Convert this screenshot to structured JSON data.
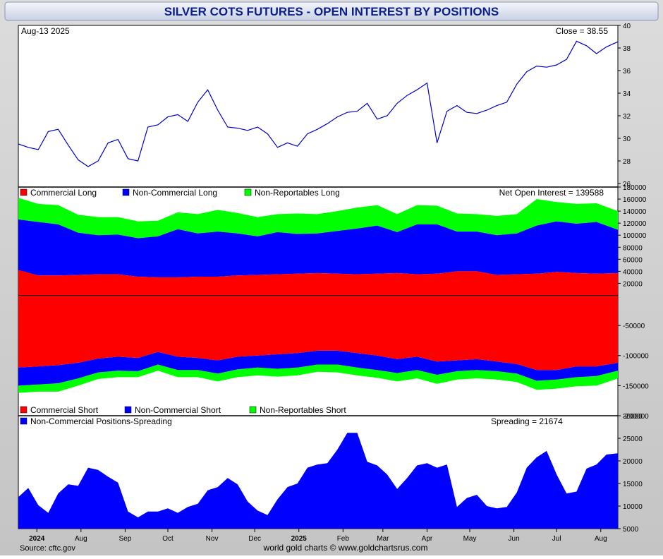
{
  "title": "SILVER COTS FUTURES - OPEN INTEREST BY POSITIONS",
  "source": "Source: cftc.gov",
  "credit": "world gold charts © www.goldchartsrus.com",
  "colors": {
    "commercial": "#ff0000",
    "noncommercial": "#0000ff",
    "nonreportable": "#00ff00",
    "price": "#0000cc",
    "title": "#0b1e8c"
  },
  "x_axis_labels": [
    "2024",
    "Aug",
    "Sep",
    "Oct",
    "Nov",
    "Dec",
    "2025",
    "Feb",
    "Mar",
    "Apr",
    "May",
    "Jun",
    "Jul",
    "Aug"
  ],
  "chart_data": [
    {
      "type": "line",
      "date_label": "Aug-13  2025",
      "close_label": "Close = 38.55",
      "ylim": [
        26,
        40
      ],
      "yticks": [
        26,
        28,
        30,
        32,
        34,
        36,
        38,
        40
      ],
      "x": [
        "2024-06-18",
        "2024-06-25",
        "2024-07-02",
        "2024-07-09",
        "2024-07-16",
        "2024-07-23",
        "2024-07-30",
        "2024-08-06",
        "2024-08-13",
        "2024-08-20",
        "2024-08-27",
        "2024-09-03",
        "2024-09-10",
        "2024-09-17",
        "2024-09-24",
        "2024-10-01",
        "2024-10-08",
        "2024-10-15",
        "2024-10-22",
        "2024-10-29",
        "2024-11-05",
        "2024-11-12",
        "2024-11-19",
        "2024-11-26",
        "2024-12-03",
        "2024-12-10",
        "2024-12-17",
        "2024-12-24",
        "2024-12-31",
        "2025-01-07",
        "2025-01-14",
        "2025-01-21",
        "2025-01-28",
        "2025-02-04",
        "2025-02-11",
        "2025-02-18",
        "2025-02-25",
        "2025-03-04",
        "2025-03-11",
        "2025-03-18",
        "2025-03-25",
        "2025-04-01",
        "2025-04-08",
        "2025-04-15",
        "2025-04-22",
        "2025-04-29",
        "2025-05-06",
        "2025-05-13",
        "2025-05-20",
        "2025-05-27",
        "2025-06-03",
        "2025-06-10",
        "2025-06-17",
        "2025-06-24",
        "2025-07-01",
        "2025-07-08",
        "2025-07-15",
        "2025-07-22",
        "2025-07-29",
        "2025-08-05",
        "2025-08-13"
      ],
      "values": [
        29.5,
        29.2,
        29.0,
        30.6,
        30.8,
        29.4,
        28.1,
        27.5,
        28.0,
        29.6,
        29.9,
        28.2,
        28.0,
        31.0,
        31.2,
        31.9,
        32.1,
        31.5,
        33.2,
        34.3,
        32.5,
        31.0,
        30.9,
        30.7,
        31.0,
        30.4,
        29.2,
        29.6,
        29.3,
        30.4,
        30.8,
        31.3,
        31.9,
        32.3,
        32.4,
        33.1,
        31.7,
        32.0,
        33.1,
        33.8,
        34.3,
        34.9,
        29.6,
        32.4,
        32.9,
        32.3,
        32.2,
        32.5,
        32.9,
        33.2,
        34.8,
        35.9,
        36.4,
        36.3,
        36.5,
        37.0,
        38.6,
        38.2,
        37.5,
        38.1,
        38.55
      ]
    },
    {
      "type": "area",
      "net_label": "Net Open Interest = 139588",
      "legend_long": [
        "Commercial Long",
        "Non-Commercial Long",
        "Non-Reportables Long"
      ],
      "legend_short": [
        "Commercial Short",
        "Non-Commercial Short",
        "Non-Reportables Short"
      ],
      "ylim": [
        -200000,
        180000
      ],
      "yticks": [
        -200000,
        -150000,
        -100000,
        -50000,
        20000,
        40000,
        60000,
        80000,
        100000,
        120000,
        140000,
        160000,
        180000
      ],
      "x": [
        "2024-06-18",
        "2024-07-02",
        "2024-07-16",
        "2024-07-30",
        "2024-08-13",
        "2024-08-27",
        "2024-09-10",
        "2024-09-24",
        "2024-10-08",
        "2024-10-22",
        "2024-11-05",
        "2024-11-19",
        "2024-12-03",
        "2024-12-17",
        "2024-12-31",
        "2025-01-14",
        "2025-01-28",
        "2025-02-11",
        "2025-02-25",
        "2025-03-11",
        "2025-03-25",
        "2025-04-08",
        "2025-04-22",
        "2025-05-06",
        "2025-05-20",
        "2025-06-03",
        "2025-06-17",
        "2025-07-01",
        "2025-07-15",
        "2025-07-29",
        "2025-08-13"
      ],
      "series": [
        {
          "name": "Commercial Long",
          "values": [
            42000,
            33000,
            33000,
            34000,
            35000,
            35000,
            31000,
            30000,
            30000,
            31000,
            31000,
            33000,
            34000,
            35000,
            36000,
            37000,
            36000,
            35000,
            36000,
            37000,
            35000,
            36000,
            40000,
            40000,
            34000,
            35000,
            36000,
            39000,
            37000,
            36000,
            37000
          ]
        },
        {
          "name": "Non-Commercial Long",
          "values": [
            84000,
            89000,
            85000,
            70000,
            65000,
            66000,
            64000,
            68000,
            80000,
            72000,
            75000,
            70000,
            64000,
            70000,
            66000,
            66000,
            71000,
            76000,
            80000,
            68000,
            83000,
            82000,
            66000,
            66000,
            66000,
            68000,
            80000,
            84000,
            82000,
            86000,
            72000
          ]
        },
        {
          "name": "Non-Reportables Long",
          "values": [
            36000,
            30000,
            32000,
            30000,
            30000,
            29000,
            28000,
            26000,
            28000,
            32000,
            36000,
            34000,
            32000,
            30000,
            34000,
            32000,
            33000,
            35000,
            34000,
            30000,
            32000,
            31000,
            30000,
            29000,
            32000,
            32000,
            44000,
            32000,
            33000,
            31000,
            31000
          ]
        },
        {
          "name": "Commercial Short",
          "values": [
            -120000,
            -118000,
            -116000,
            -112000,
            -105000,
            -102000,
            -104000,
            -94000,
            -102000,
            -104000,
            -108000,
            -102000,
            -100000,
            -98000,
            -96000,
            -92000,
            -92000,
            -96000,
            -100000,
            -106000,
            -102000,
            -110000,
            -108000,
            -106000,
            -110000,
            -114000,
            -124000,
            -124000,
            -118000,
            -118000,
            -112000
          ]
        },
        {
          "name": "Non-Commercial Short",
          "values": [
            -30000,
            -30000,
            -30000,
            -26000,
            -23000,
            -23000,
            -22000,
            -21000,
            -22000,
            -20000,
            -22000,
            -21000,
            -20000,
            -24000,
            -24000,
            -23000,
            -23000,
            -24000,
            -24000,
            -23000,
            -22000,
            -22000,
            -18000,
            -18000,
            -16000,
            -16000,
            -18000,
            -16000,
            -18000,
            -16000,
            -13000
          ]
        },
        {
          "name": "Non-Reportables Short",
          "values": [
            -12000,
            -12000,
            -14000,
            -12000,
            -11000,
            -11000,
            -10000,
            -10000,
            -12000,
            -12000,
            -13000,
            -13000,
            -13000,
            -13000,
            -13000,
            -12000,
            -13000,
            -13000,
            -13000,
            -14000,
            -14000,
            -15000,
            -14000,
            -14000,
            -14000,
            -14000,
            -15000,
            -15000,
            -15000,
            -16000,
            -13000
          ]
        }
      ]
    },
    {
      "type": "area",
      "legend": [
        "Non-Commercial Positions-Spreading"
      ],
      "spreading_label": "Spreading = 21674",
      "ylim": [
        5000,
        30000
      ],
      "yticks": [
        5000,
        10000,
        15000,
        20000,
        25000,
        30000
      ],
      "x": [
        "2024-06-18",
        "2024-06-25",
        "2024-07-02",
        "2024-07-09",
        "2024-07-16",
        "2024-07-23",
        "2024-07-30",
        "2024-08-06",
        "2024-08-13",
        "2024-08-20",
        "2024-08-27",
        "2024-09-03",
        "2024-09-10",
        "2024-09-17",
        "2024-09-24",
        "2024-10-01",
        "2024-10-08",
        "2024-10-15",
        "2024-10-22",
        "2024-10-29",
        "2024-11-05",
        "2024-11-12",
        "2024-11-19",
        "2024-11-26",
        "2024-12-03",
        "2024-12-10",
        "2024-12-17",
        "2024-12-24",
        "2024-12-31",
        "2025-01-07",
        "2025-01-14",
        "2025-01-21",
        "2025-01-28",
        "2025-02-04",
        "2025-02-11",
        "2025-02-18",
        "2025-02-25",
        "2025-03-04",
        "2025-03-11",
        "2025-03-18",
        "2025-03-25",
        "2025-04-01",
        "2025-04-08",
        "2025-04-15",
        "2025-04-22",
        "2025-04-29",
        "2025-05-06",
        "2025-05-13",
        "2025-05-20",
        "2025-05-27",
        "2025-06-03",
        "2025-06-10",
        "2025-06-17",
        "2025-06-24",
        "2025-07-01",
        "2025-07-08",
        "2025-07-15",
        "2025-07-22",
        "2025-07-29",
        "2025-08-05",
        "2025-08-13"
      ],
      "values": [
        12000,
        14000,
        10200,
        8500,
        12800,
        14800,
        14500,
        18500,
        18000,
        16500,
        15200,
        8800,
        7500,
        8800,
        8800,
        9500,
        8500,
        9800,
        10500,
        13500,
        14200,
        16200,
        14800,
        11000,
        9000,
        8000,
        11500,
        14200,
        15000,
        18500,
        19200,
        19500,
        22500,
        26200,
        26200,
        19800,
        19000,
        17000,
        13800,
        16200,
        19000,
        19500,
        18500,
        19200,
        9800,
        11800,
        12500,
        10000,
        9500,
        9800,
        13000,
        18500,
        20800,
        22200,
        17000,
        12800,
        13200,
        18300,
        19200,
        21400,
        21674
      ]
    }
  ]
}
